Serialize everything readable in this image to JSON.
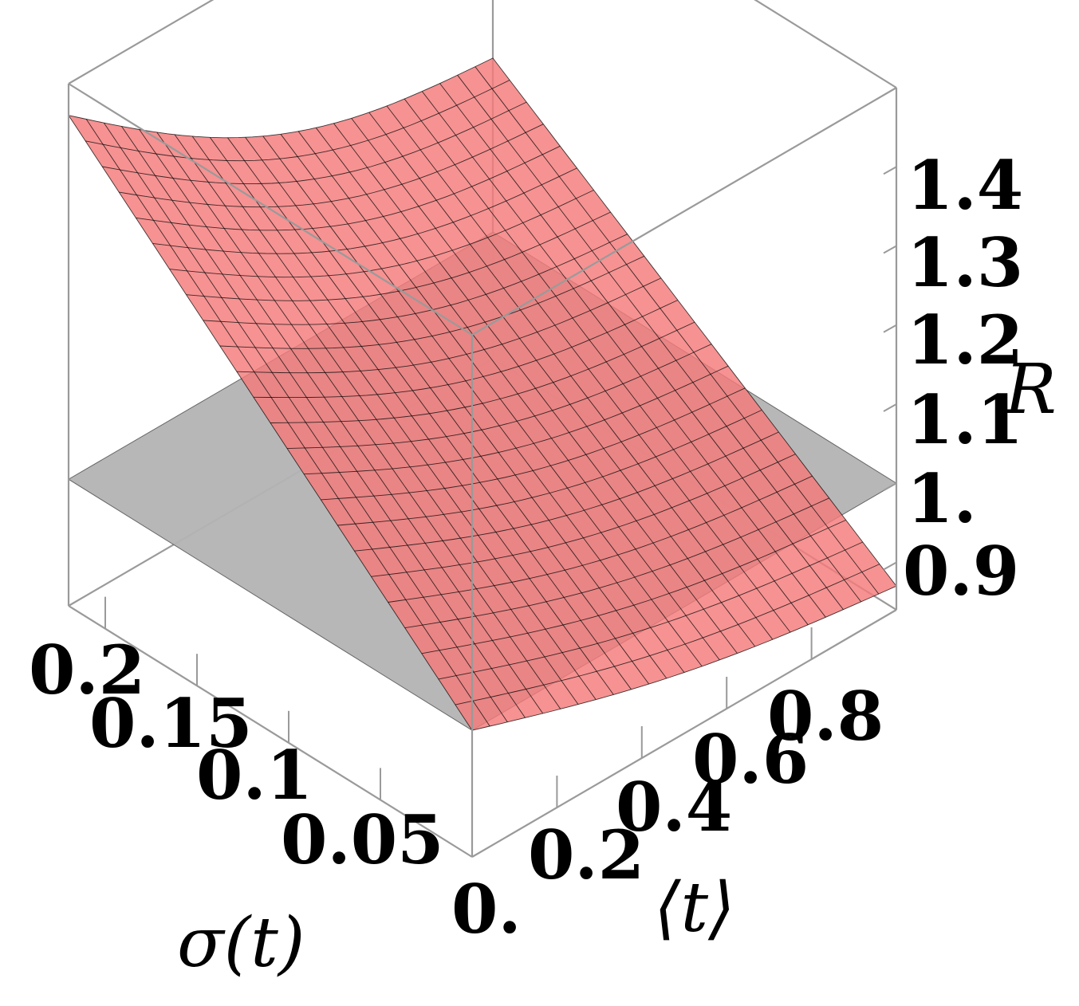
{
  "chart_data": {
    "type": "surface3d",
    "title": "",
    "xlabel": "⟨t⟩",
    "ylabel": "σ(t)",
    "zlabel": "R",
    "xlim": [
      0,
      1
    ],
    "ylim": [
      0,
      0.22
    ],
    "zlim": [
      0.84,
      1.5
    ],
    "x_ticks": [
      "0.",
      "0.2",
      "0.4",
      "0.6",
      "0.8"
    ],
    "y_ticks": [
      "0.05",
      "0.1",
      "0.15",
      "0.2"
    ],
    "z_ticks": [
      "0.9",
      "1.",
      "1.1",
      "1.2",
      "1.3",
      "1.4"
    ],
    "x_tick_values": [
      0,
      0.2,
      0.4,
      0.6,
      0.8
    ],
    "y_tick_values": [
      0.05,
      0.1,
      0.15,
      0.2
    ],
    "z_tick_values": [
      0.9,
      1.0,
      1.1,
      1.2,
      1.3,
      1.4
    ],
    "reference_plane": {
      "z": 1.0,
      "color": "#b3b3b3"
    },
    "surface": {
      "color": "#f47a7a",
      "mesh_color": "#000000",
      "mesh_lines": 24,
      "points": [
        {
          "x": 0.0,
          "y": 0.0,
          "z": 1.0
        },
        {
          "x": 0.0,
          "y": 0.22,
          "z": 1.46
        },
        {
          "x": 1.0,
          "y": 0.0,
          "z": 0.87
        },
        {
          "x": 1.0,
          "y": 0.22,
          "z": 1.22
        }
      ]
    }
  }
}
